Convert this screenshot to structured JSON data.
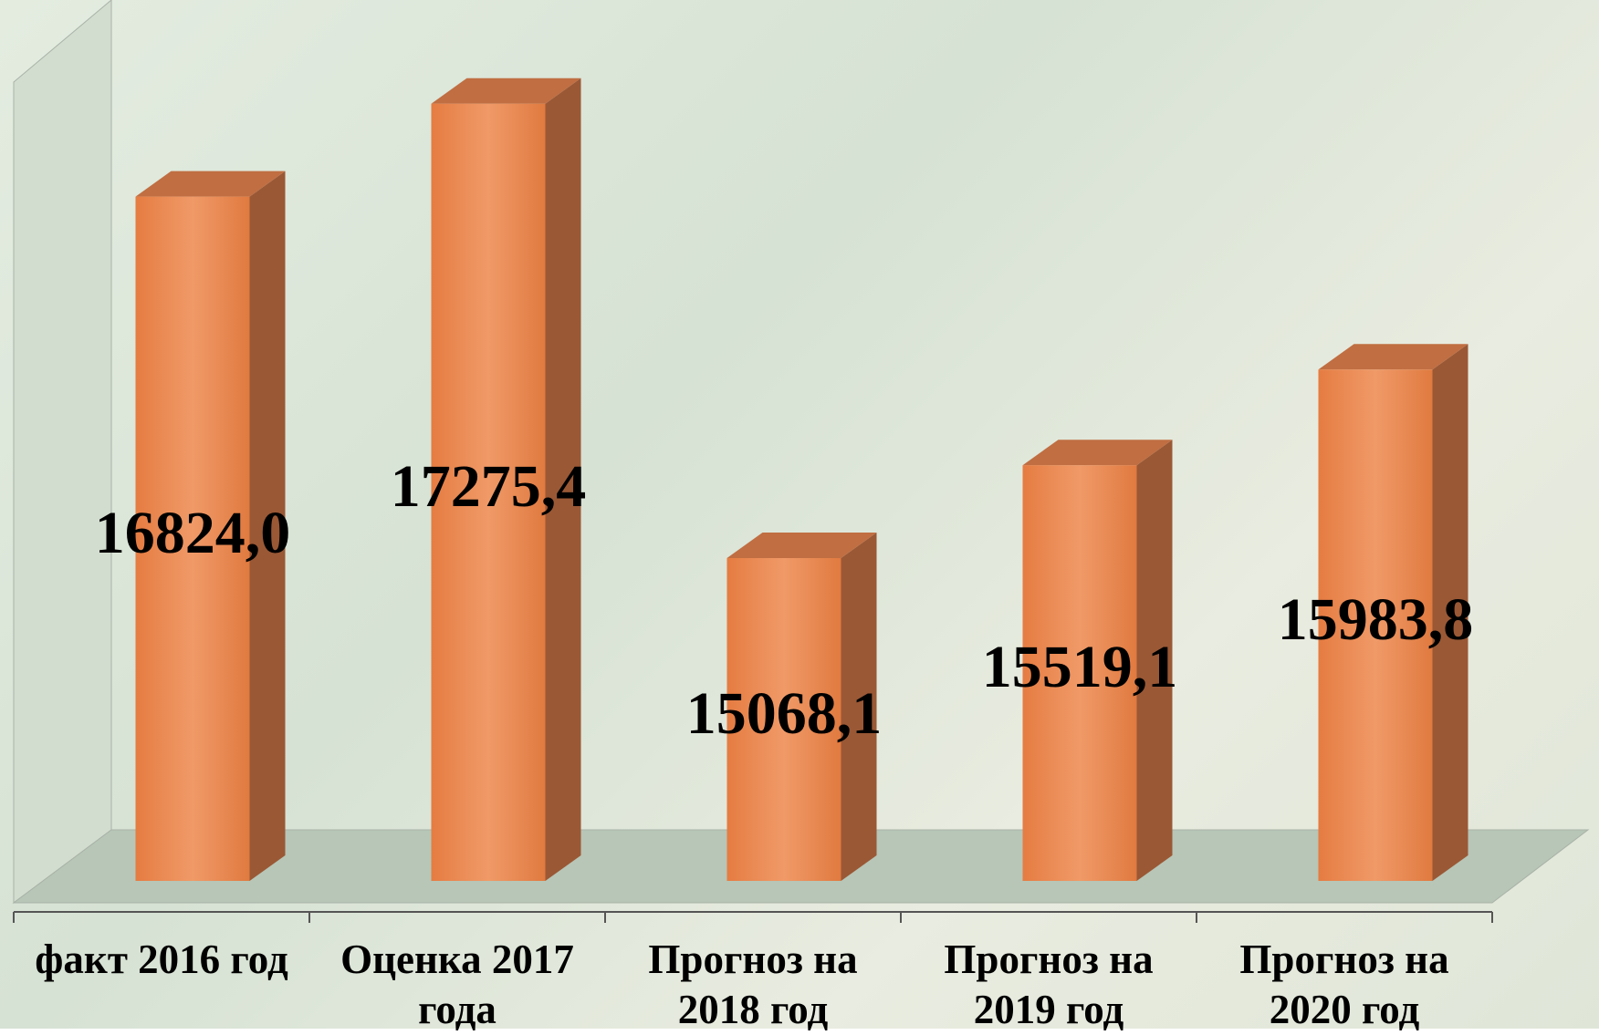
{
  "chart_data": {
    "type": "bar3d",
    "categories": [
      "факт 2016 год",
      "Оценка 2017 года",
      "Прогноз на 2018 год",
      "Прогноз на 2019 год",
      "Прогноз на 2020 год"
    ],
    "values": [
      16824.0,
      17275.4,
      15068.1,
      15519.1,
      15983.8
    ],
    "value_labels": [
      "16824,0",
      "17275,4",
      "15068,1",
      "15519,1",
      "15983,8"
    ],
    "color": "#ea8650",
    "ylim": [
      13500,
      17500
    ]
  }
}
